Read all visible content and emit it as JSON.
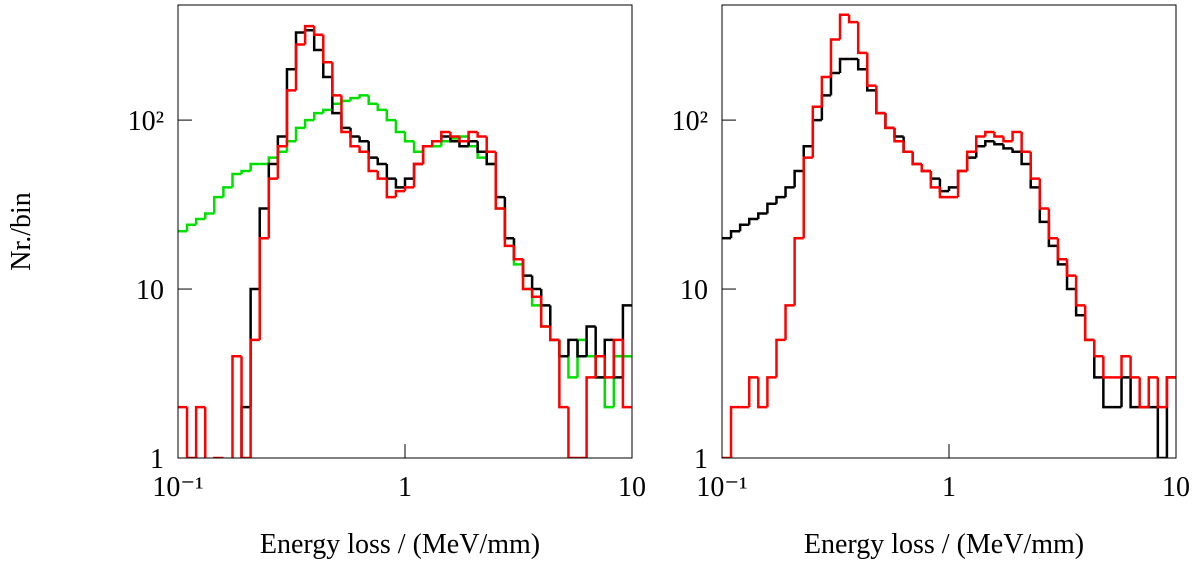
{
  "chart_data": [
    {
      "type": "histogram",
      "ylabel": "Nr./bin",
      "xlabel": "Energy loss / (MeV/mm)",
      "log_x": true,
      "log_y": true,
      "xlim": [
        0.1,
        10
      ],
      "ylim": [
        1,
        480
      ],
      "xticks": [
        {
          "value": 0.1,
          "label": "10⁻¹"
        },
        1,
        10
      ],
      "yticks": [
        1,
        10,
        {
          "value": 100,
          "label": "10²"
        }
      ],
      "bins": [
        0.1,
        0.1096,
        0.1202,
        0.1318,
        0.1445,
        0.1585,
        0.1738,
        0.1905,
        0.2089,
        0.2291,
        0.2512,
        0.2754,
        0.302,
        0.3311,
        0.3631,
        0.3981,
        0.4365,
        0.4786,
        0.5248,
        0.5754,
        0.631,
        0.6918,
        0.7586,
        0.8318,
        0.912,
        1,
        1.0965,
        1.2023,
        1.3183,
        1.4454,
        1.5849,
        1.7378,
        1.9055,
        2.0893,
        2.2909,
        2.5119,
        2.7542,
        3.02,
        3.3113,
        3.6308,
        3.9811,
        4.3652,
        4.7863,
        5.2481,
        5.7544,
        6.3096,
        6.9183,
        7.5858,
        8.3176,
        9.1201,
        10
      ],
      "series": [
        {
          "color": "#00e000",
          "values": [
            22,
            24,
            26,
            28,
            35,
            40,
            48,
            50,
            55,
            55,
            60,
            65,
            75,
            90,
            100,
            110,
            115,
            125,
            130,
            135,
            140,
            125,
            115,
            100,
            85,
            75,
            65,
            70,
            70,
            75,
            78,
            80,
            70,
            60,
            55,
            30,
            20,
            14,
            10,
            8,
            6,
            5,
            4,
            3,
            5,
            4,
            3,
            2,
            4,
            4
          ]
        },
        {
          "color": "#000000",
          "values": [
            0,
            0,
            0,
            0,
            0,
            0,
            0,
            2,
            10,
            30,
            55,
            80,
            200,
            330,
            340,
            260,
            180,
            110,
            90,
            80,
            75,
            60,
            55,
            45,
            40,
            45,
            55,
            70,
            75,
            80,
            75,
            70,
            75,
            65,
            55,
            35,
            20,
            15,
            12,
            10,
            8,
            5,
            4,
            5,
            4,
            6,
            3,
            5,
            3,
            8
          ]
        },
        {
          "color": "#ff0000",
          "values": [
            2,
            1,
            2,
            0,
            1,
            0,
            4,
            1,
            5,
            20,
            45,
            70,
            150,
            280,
            360,
            320,
            220,
            140,
            85,
            70,
            65,
            50,
            45,
            35,
            38,
            40,
            55,
            70,
            75,
            85,
            80,
            75,
            85,
            80,
            65,
            30,
            18,
            15,
            10,
            9,
            6,
            5,
            2,
            1,
            1,
            3,
            4,
            3,
            5,
            2
          ]
        }
      ]
    },
    {
      "type": "histogram",
      "xlabel": "Energy loss / (MeV/mm)",
      "log_x": true,
      "log_y": true,
      "xlim": [
        0.1,
        10
      ],
      "ylim": [
        1,
        480
      ],
      "xticks": [
        {
          "value": 0.1,
          "label": "10⁻¹"
        },
        1,
        10
      ],
      "yticks": [
        1,
        10,
        {
          "value": 100,
          "label": "10²"
        }
      ],
      "bins": [
        0.1,
        0.1096,
        0.1202,
        0.1318,
        0.1445,
        0.1585,
        0.1738,
        0.1905,
        0.2089,
        0.2291,
        0.2512,
        0.2754,
        0.302,
        0.3311,
        0.3631,
        0.3981,
        0.4365,
        0.4786,
        0.5248,
        0.5754,
        0.631,
        0.6918,
        0.7586,
        0.8318,
        0.912,
        1,
        1.0965,
        1.2023,
        1.3183,
        1.4454,
        1.5849,
        1.7378,
        1.9055,
        2.0893,
        2.2909,
        2.5119,
        2.7542,
        3.02,
        3.3113,
        3.6308,
        3.9811,
        4.3652,
        4.7863,
        5.2481,
        5.7544,
        6.3096,
        6.9183,
        7.5858,
        8.3176,
        9.1201,
        10
      ],
      "series": [
        {
          "color": "#000000",
          "values": [
            20,
            22,
            24,
            26,
            28,
            32,
            35,
            40,
            50,
            70,
            100,
            140,
            190,
            230,
            230,
            200,
            150,
            110,
            90,
            80,
            65,
            55,
            50,
            45,
            38,
            40,
            50,
            60,
            70,
            75,
            72,
            68,
            65,
            55,
            40,
            25,
            18,
            14,
            10,
            7,
            5,
            3,
            2,
            2,
            3,
            2,
            2,
            2,
            1,
            3
          ]
        },
        {
          "color": "#ff0000",
          "values": [
            1,
            2,
            2,
            3,
            2,
            3,
            5,
            8,
            20,
            60,
            120,
            180,
            300,
            420,
            380,
            250,
            160,
            110,
            90,
            75,
            65,
            55,
            50,
            40,
            35,
            35,
            50,
            65,
            80,
            85,
            80,
            75,
            85,
            65,
            45,
            30,
            20,
            15,
            12,
            8,
            5,
            4,
            3,
            3,
            4,
            3,
            2,
            3,
            2,
            3
          ]
        }
      ]
    }
  ]
}
